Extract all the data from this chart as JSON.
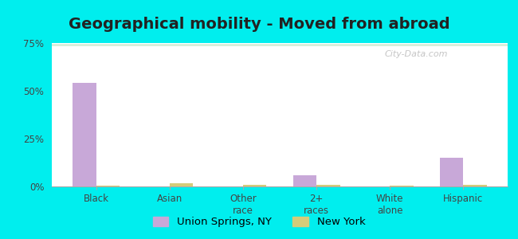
{
  "title": "Geographical mobility - Moved from abroad",
  "categories": [
    "Black",
    "Asian",
    "Other\nrace",
    "2+\nraces",
    "White\nalone",
    "Hispanic"
  ],
  "union_springs": [
    54.0,
    0.0,
    0.0,
    6.0,
    0.0,
    15.0
  ],
  "new_york": [
    0.5,
    1.5,
    1.0,
    1.0,
    0.3,
    1.0
  ],
  "union_springs_color": "#c8a8d8",
  "new_york_color": "#d4cc7a",
  "ylim": [
    0,
    75
  ],
  "yticks": [
    0,
    25,
    50,
    75
  ],
  "ytick_labels": [
    "0%",
    "25%",
    "50%",
    "75%"
  ],
  "bar_width": 0.32,
  "background_color": "#00eeee",
  "legend_label_1": "Union Springs, NY",
  "legend_label_2": "New York",
  "title_fontsize": 14,
  "tick_fontsize": 8.5,
  "legend_fontsize": 9.5
}
